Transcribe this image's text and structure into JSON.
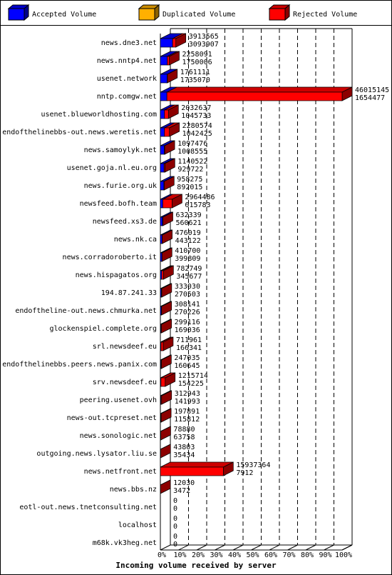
{
  "chart_data": {
    "type": "bar3d",
    "orientation": "horizontal",
    "stacked": true,
    "xlabel": "Incoming volume received by server",
    "categories": [
      "news.dne3.net",
      "news.nntp4.net",
      "usenet.network",
      "nntp.comgw.net",
      "usenet.blueworldhosting.com",
      "endofthelinebbs-out.news.weretis.net",
      "news.samoylyk.net",
      "usenet.goja.nl.eu.org",
      "news.furie.org.uk",
      "newsfeed.bofh.team",
      "newsfeed.xs3.de",
      "news.nk.ca",
      "news.corradoroberto.it",
      "news.hispagatos.org",
      "194.87.241.33",
      "endoftheline-out.news.chmurka.net",
      "glockenspiel.complete.org",
      "srl.newsdeef.eu",
      "endofthelinebbs.peers.news.panix.com",
      "srv.newsdeef.eu",
      "peering.usenet.ovh",
      "news-out.tcpreset.net",
      "news.sonologic.net",
      "outgoing.news.lysator.liu.se",
      "news.netfront.net",
      "news.bbs.nz",
      "eotl-out.news.tnetconsulting.net",
      "localhost",
      "m68k.vk3heg.net"
    ],
    "totals": [
      3913565,
      2258091,
      1761111,
      46015145,
      2032637,
      2280574,
      1097476,
      1140522,
      958275,
      2964486,
      632339,
      476019,
      410700,
      782749,
      333030,
      308141,
      299116,
      711961,
      247035,
      1215714,
      312943,
      197891,
      78880,
      43803,
      15937364,
      12030,
      0,
      0,
      0
    ],
    "series": [
      {
        "name": "Accepted Volume",
        "color": "#0000ff",
        "values": [
          3093907,
          1750006,
          1735070,
          1654477,
          1045733,
          1042425,
          1008555,
          929722,
          892015,
          615783,
          560621,
          443122,
          399809,
          345677,
          270503,
          270226,
          169036,
          166341,
          160645,
          154225,
          141993,
          115812,
          63758,
          35434,
          7912,
          3472,
          0,
          0,
          0
        ]
      },
      {
        "name": "Duplicated Volume",
        "color": "#ffb000",
        "values": [
          0,
          0,
          0,
          0,
          0,
          0,
          0,
          0,
          0,
          0,
          0,
          0,
          0,
          0,
          0,
          0,
          0,
          0,
          0,
          0,
          0,
          0,
          0,
          0,
          0,
          0,
          0,
          0,
          0
        ]
      },
      {
        "name": "Rejected Volume",
        "color": "#ff0000",
        "values": [
          819658,
          508085,
          26041,
          44360668,
          986904,
          1238149,
          88921,
          210800,
          66260,
          2348703,
          71718,
          32897,
          10891,
          437072,
          62527,
          37915,
          130080,
          545620,
          86390,
          1061489,
          170950,
          82079,
          15122,
          8369,
          15929452,
          8558,
          0,
          0,
          0
        ]
      }
    ],
    "xlim": [
      0,
      46015145
    ],
    "xticks": [
      {
        "value": 0,
        "label": "0%"
      },
      {
        "value": 4601514.5,
        "label": "10%"
      },
      {
        "value": 9203029,
        "label": "20%"
      },
      {
        "value": 13804543.5,
        "label": "30%"
      },
      {
        "value": 18406058,
        "label": "40%"
      },
      {
        "value": 23007572.5,
        "label": "50%"
      },
      {
        "value": 27609087,
        "label": "60%"
      },
      {
        "value": 32210601.5,
        "label": "70%"
      },
      {
        "value": 36812116,
        "label": "80%"
      },
      {
        "value": 41413630.5,
        "label": "90%"
      },
      {
        "value": 46015145,
        "label": "100%"
      }
    ],
    "grid": true,
    "legend": "top"
  }
}
